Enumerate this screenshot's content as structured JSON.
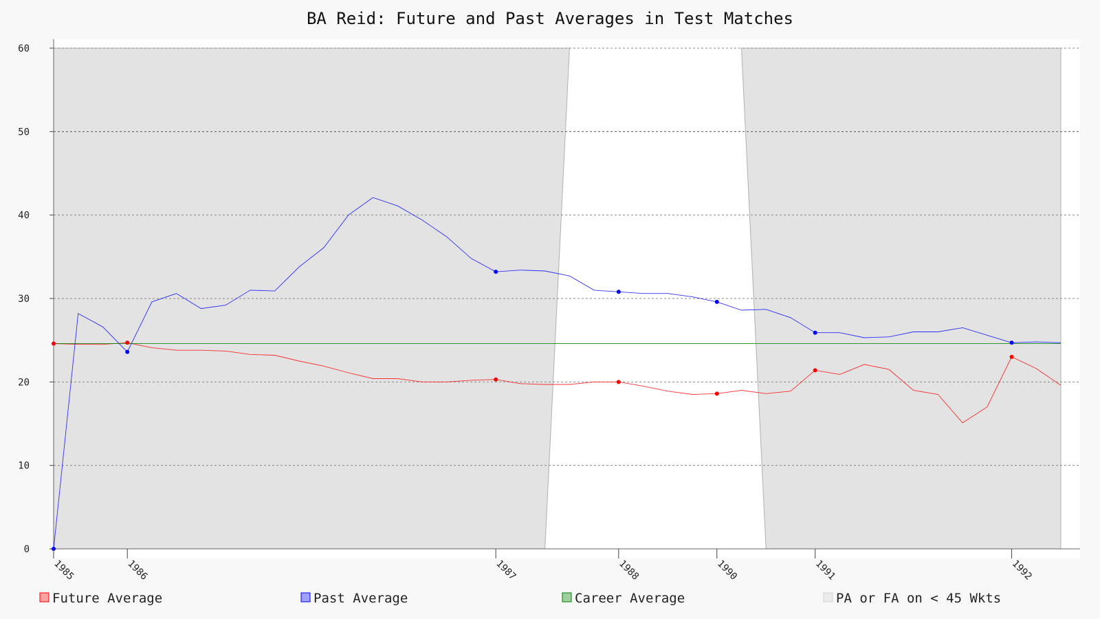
{
  "chart_data": {
    "type": "line",
    "title": "BA Reid: Future and Past Averages in Test Matches",
    "xlabel": "",
    "ylabel": "",
    "ylim": [
      0,
      60
    ],
    "yticks": [
      0,
      10,
      20,
      30,
      40,
      50,
      60
    ],
    "n_points": 42,
    "x_tick_labels": [
      {
        "index": 0,
        "label": "1985"
      },
      {
        "index": 3,
        "label": "1986"
      },
      {
        "index": 18,
        "label": "1987"
      },
      {
        "index": 23,
        "label": "1988"
      },
      {
        "index": 27,
        "label": "1990"
      },
      {
        "index": 31,
        "label": "1991"
      },
      {
        "index": 39,
        "label": "1992"
      }
    ],
    "grid": true,
    "legend_position": "bottom",
    "series": [
      {
        "name": "Future Average",
        "color": "#ff0000",
        "values": [
          24.6,
          24.5,
          24.5,
          24.7,
          24.1,
          23.8,
          23.8,
          23.7,
          23.3,
          23.2,
          22.5,
          21.9,
          21.1,
          20.4,
          20.4,
          20.0,
          20.0,
          20.2,
          20.3,
          19.8,
          19.7,
          19.7,
          20.0,
          20.0,
          19.5,
          18.9,
          18.5,
          18.6,
          19.0,
          18.6,
          18.9,
          21.4,
          20.9,
          22.1,
          21.5,
          19.0,
          18.5,
          15.1,
          17.0,
          23.0,
          21.6,
          19.6
        ],
        "marker_indices": [
          0,
          3,
          18,
          23,
          27,
          31,
          39
        ]
      },
      {
        "name": "Past Average",
        "color": "#0000ff",
        "values": [
          0.0,
          28.2,
          26.6,
          23.6,
          29.6,
          30.6,
          28.8,
          29.2,
          31.0,
          30.9,
          33.8,
          36.1,
          40.0,
          42.1,
          41.1,
          39.4,
          37.4,
          34.8,
          33.2,
          33.4,
          33.3,
          32.7,
          31.0,
          30.8,
          30.6,
          30.6,
          30.2,
          29.6,
          28.6,
          28.7,
          27.7,
          25.9,
          25.9,
          25.3,
          25.4,
          26.0,
          26.0,
          26.5,
          25.6,
          24.7,
          24.8,
          24.7
        ],
        "marker_indices": [
          0,
          3,
          18,
          23,
          27,
          31,
          39
        ]
      },
      {
        "name": "Career Average",
        "color": "#008000",
        "values": [
          24.6,
          24.6,
          24.6,
          24.6,
          24.6,
          24.6,
          24.6,
          24.6,
          24.6,
          24.6,
          24.6,
          24.6,
          24.6,
          24.6,
          24.6,
          24.6,
          24.6,
          24.6,
          24.6,
          24.6,
          24.6,
          24.6,
          24.6,
          24.6,
          24.6,
          24.6,
          24.6,
          24.6,
          24.6,
          24.6,
          24.6,
          24.6,
          24.6,
          24.6,
          24.6,
          24.6,
          24.6,
          24.6,
          24.6,
          24.6,
          24.6,
          24.6
        ]
      }
    ],
    "shaded_region": {
      "name": "PA or FA on < 45 Wkts",
      "color": "#d3d3d3",
      "top_indices_covered": [
        0,
        21,
        28,
        41
      ],
      "bottom_indices_covered": [
        0,
        20,
        29,
        41
      ]
    },
    "legend": [
      {
        "label": "Future Average",
        "color": "#ff0000"
      },
      {
        "label": "Past Average",
        "color": "#0000ff"
      },
      {
        "label": "Career Average",
        "color": "#008000"
      },
      {
        "label": "PA or FA on < 45 Wkts",
        "color": "#d3d3d3"
      }
    ]
  }
}
